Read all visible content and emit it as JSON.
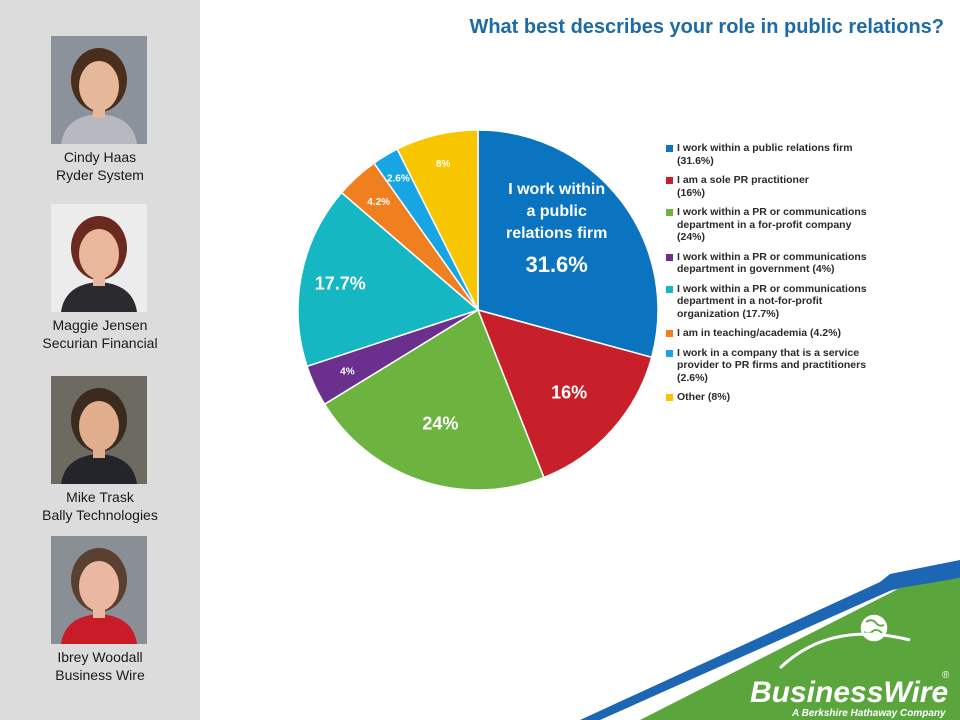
{
  "title": "What best describes your role in public relations?",
  "panelists": [
    {
      "name": "Cindy Haas",
      "company": "Ryder System",
      "bg": "#8c929c",
      "hair": "#4a2e1c",
      "skin": "#e6b89a",
      "top": "#b8b8c0"
    },
    {
      "name": "Maggie Jensen",
      "company": "Securian Financial",
      "bg": "#ececec",
      "hair": "#6b2a1f",
      "skin": "#e9b89c",
      "top": "#2b2b2f"
    },
    {
      "name": "Mike Trask",
      "company": "Bally Technologies",
      "bg": "#6d6a62",
      "hair": "#3b2a1e",
      "skin": "#e0ae8c",
      "top": "#23252b"
    },
    {
      "name": "Ibrey Woodall",
      "company": "Business Wire",
      "bg": "#8a8f96",
      "hair": "#5a4030",
      "skin": "#eab8a0",
      "top": "#c81d28"
    }
  ],
  "chart_data": {
    "type": "pie",
    "title": "What best describes your role in public relations?",
    "slices": [
      {
        "label": "I work within a public relations firm (31.6%)",
        "value": 31.6,
        "color": "#0b74c0",
        "data_label": "31.6%",
        "inner_text": [
          "I work within",
          "a public",
          "relations firm"
        ]
      },
      {
        "label": "I am a sole PR practitioner (16%)",
        "value": 16,
        "color": "#c8202b",
        "data_label": "16%"
      },
      {
        "label": "I work within a PR or communications department in a for-profit company (24%)",
        "value": 24,
        "color": "#6cb33f",
        "data_label": "24%"
      },
      {
        "label": "I work within a PR or communications department in government (4%)",
        "value": 4,
        "color": "#6b2f8e",
        "data_label": "4%"
      },
      {
        "label": "I work within a PR or communications department in a not-for-profit organization (17.7%)",
        "value": 17.7,
        "color": "#15b7c3",
        "data_label": "17.7%"
      },
      {
        "label": "I am in teaching/academia (4.2%)",
        "value": 4.2,
        "color": "#f07f1f",
        "data_label": "4.2%"
      },
      {
        "label": "I work in a company that is a service provider to PR firms and practitioners (2.6%)",
        "value": 2.6,
        "color": "#17a6e3",
        "data_label": "2.6%"
      },
      {
        "label": "Other (8%)",
        "value": 8,
        "color": "#f8c600",
        "data_label": "8%"
      }
    ],
    "legend_position": "right"
  },
  "legend_lines": [
    [
      "I work within a public relations firm",
      "(31.6%)"
    ],
    [
      "I am a sole PR practitioner",
      "(16%)"
    ],
    [
      "I work within a PR or communications",
      "department in a for-profit company",
      "(24%)"
    ],
    [
      "I work within a PR or communications",
      "department in government (4%)"
    ],
    [
      "I work within a PR or communications",
      "department in a not-for-profit",
      "organization (17.7%)"
    ],
    [
      "I am in teaching/academia (4.2%)"
    ],
    [
      "I work in a company that is a service",
      "provider to PR firms and practitioners",
      "(2.6%)"
    ],
    [
      "Other (8%)"
    ]
  ],
  "brand": {
    "name": "BusinessWire",
    "tagline": "A Berkshire Hathaway Company",
    "registered": "®",
    "green": "#5aa63c",
    "blue": "#1d66b3"
  }
}
